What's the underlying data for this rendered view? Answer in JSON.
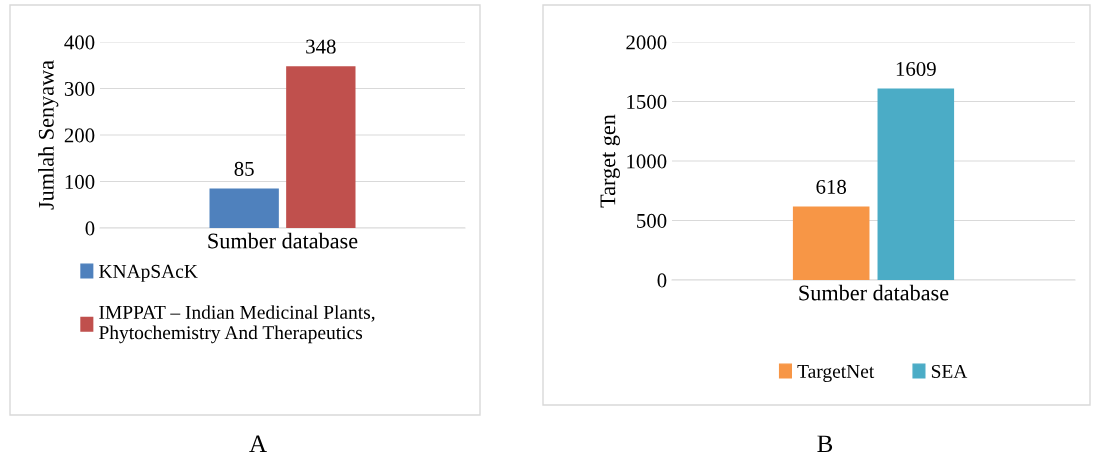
{
  "chart_data": [
    {
      "type": "bar",
      "categories": [
        "Sumber database"
      ],
      "ylabel": "Jumlah Senyawa",
      "ylim": [
        0,
        400
      ],
      "yticks": [
        0,
        100,
        200,
        300,
        400
      ],
      "grid": "y",
      "legend": "bottom",
      "data_labels": true,
      "annotations": [
        "A"
      ],
      "series": [
        {
          "name": "KNApSAcK",
          "color": "#4f81bd",
          "values": [
            85
          ]
        },
        {
          "name": "IMPPAT – Indian Medicinal Plants,\nPhytochemistry And Therapeutics",
          "color": "#c0504d",
          "values": [
            348
          ]
        }
      ]
    },
    {
      "type": "bar",
      "categories": [
        "Sumber database"
      ],
      "ylabel": "Target gen",
      "ylim": [
        0,
        2000
      ],
      "yticks": [
        0,
        500,
        1000,
        1500,
        2000
      ],
      "grid": "y",
      "legend": "bottom",
      "data_labels": true,
      "annotations": [
        "B"
      ],
      "series": [
        {
          "name": "TargetNet",
          "color": "#f79646",
          "values": [
            618
          ]
        },
        {
          "name": "SEA",
          "color": "#4bacc6",
          "values": [
            1609
          ]
        }
      ]
    }
  ]
}
